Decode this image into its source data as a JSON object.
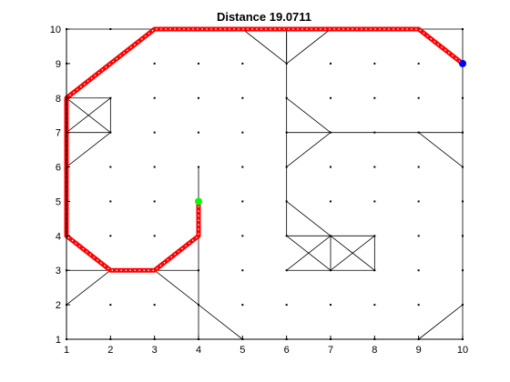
{
  "chart_data": {
    "type": "line",
    "title": "Distance 19.0711",
    "xlabel": "",
    "ylabel": "",
    "xlim": [
      1,
      10
    ],
    "ylim": [
      1,
      10
    ],
    "xticks": [
      "1",
      "2",
      "3",
      "4",
      "5",
      "6",
      "7",
      "8",
      "9",
      "10"
    ],
    "yticks": [
      "1",
      "2",
      "3",
      "4",
      "5",
      "6",
      "7",
      "8",
      "9",
      "10"
    ],
    "grid": false,
    "node_color": "#000000",
    "edge_color": "#000000",
    "path_color": "#ff0000",
    "start_color": "#00ff00",
    "goal_color": "#0000ff",
    "nodes_x": [
      1,
      2,
      3,
      4,
      5,
      6,
      7,
      8,
      9,
      10
    ],
    "nodes_y": [
      1,
      2,
      3,
      4,
      5,
      6,
      7,
      8,
      9,
      10
    ],
    "edges": [
      [
        [
          1,
          1
        ],
        [
          10,
          1
        ]
      ],
      [
        [
          1,
          1
        ],
        [
          1,
          10
        ]
      ],
      [
        [
          1,
          10
        ],
        [
          10,
          10
        ]
      ],
      [
        [
          10,
          1
        ],
        [
          10,
          10
        ]
      ],
      [
        [
          1,
          2
        ],
        [
          2,
          3
        ]
      ],
      [
        [
          1,
          3
        ],
        [
          4,
          3
        ]
      ],
      [
        [
          3,
          3
        ],
        [
          5,
          1
        ]
      ],
      [
        [
          4,
          1
        ],
        [
          4,
          6
        ]
      ],
      [
        [
          1,
          8
        ],
        [
          2,
          8
        ]
      ],
      [
        [
          2,
          7
        ],
        [
          2,
          8
        ]
      ],
      [
        [
          1,
          7
        ],
        [
          2,
          7
        ]
      ],
      [
        [
          1,
          8
        ],
        [
          2,
          7
        ]
      ],
      [
        [
          1,
          7
        ],
        [
          2,
          8
        ]
      ],
      [
        [
          1,
          6
        ],
        [
          2,
          7
        ]
      ],
      [
        [
          5,
          10
        ],
        [
          6,
          9
        ]
      ],
      [
        [
          6,
          9
        ],
        [
          6,
          10
        ]
      ],
      [
        [
          6,
          9
        ],
        [
          7,
          10
        ]
      ],
      [
        [
          6,
          4
        ],
        [
          6,
          10
        ]
      ],
      [
        [
          6,
          8
        ],
        [
          7,
          7
        ]
      ],
      [
        [
          6,
          6
        ],
        [
          7,
          7
        ]
      ],
      [
        [
          6,
          7
        ],
        [
          10,
          7
        ]
      ],
      [
        [
          9,
          7
        ],
        [
          10,
          6
        ]
      ],
      [
        [
          6,
          5
        ],
        [
          7,
          4
        ]
      ],
      [
        [
          6,
          4
        ],
        [
          8,
          4
        ]
      ],
      [
        [
          6,
          3
        ],
        [
          8,
          3
        ]
      ],
      [
        [
          8,
          3
        ],
        [
          8,
          4
        ]
      ],
      [
        [
          7,
          3
        ],
        [
          7,
          4
        ]
      ],
      [
        [
          6,
          4
        ],
        [
          7,
          3
        ]
      ],
      [
        [
          6,
          3
        ],
        [
          7,
          4
        ]
      ],
      [
        [
          7,
          4
        ],
        [
          8,
          3
        ]
      ],
      [
        [
          7,
          3
        ],
        [
          8,
          4
        ]
      ],
      [
        [
          9,
          1
        ],
        [
          10,
          2
        ]
      ]
    ],
    "path": [
      [
        4,
        5
      ],
      [
        4,
        4
      ],
      [
        3,
        3
      ],
      [
        2,
        3
      ],
      [
        1,
        4
      ],
      [
        1,
        8
      ],
      [
        2,
        9
      ],
      [
        3,
        10
      ],
      [
        9,
        10
      ],
      [
        10,
        9
      ]
    ],
    "start": [
      4,
      5
    ],
    "goal": [
      10,
      9
    ]
  }
}
